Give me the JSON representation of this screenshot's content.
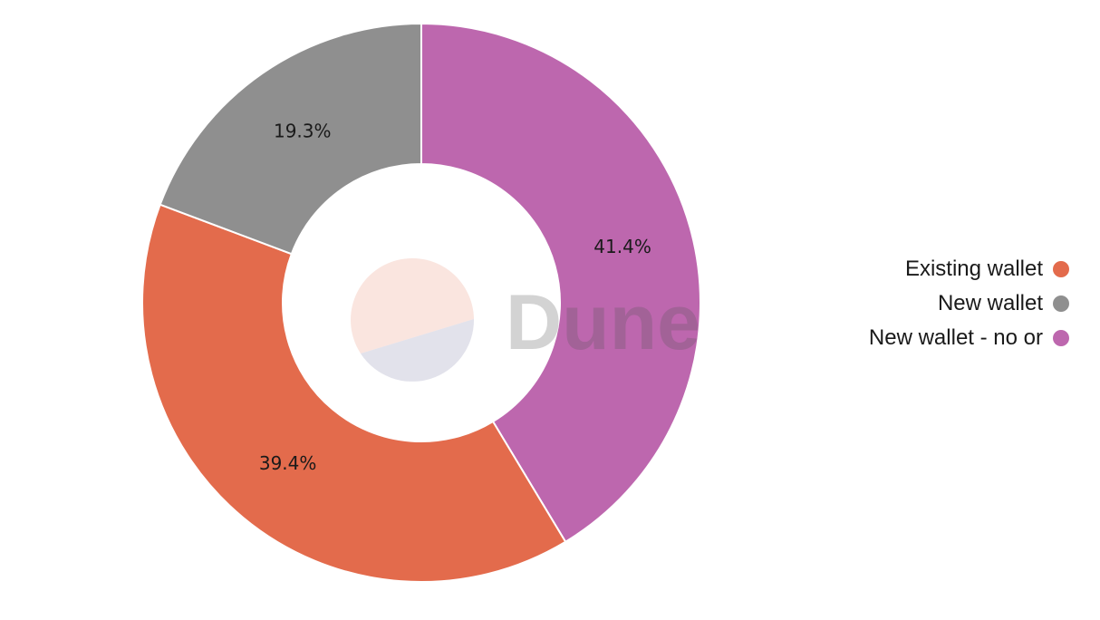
{
  "chart_data": {
    "type": "pie",
    "variant": "donut",
    "categories": [
      "Existing wallet",
      "New wallet",
      "New wallet - no or"
    ],
    "values": [
      39.4,
      19.3,
      41.4
    ],
    "value_labels": [
      "39.4%",
      "19.3%",
      "41.4%"
    ],
    "colors": [
      "#e36b4c",
      "#8f8f8f",
      "#bd67ae"
    ],
    "legend_position": "right",
    "watermark": "Dune"
  }
}
